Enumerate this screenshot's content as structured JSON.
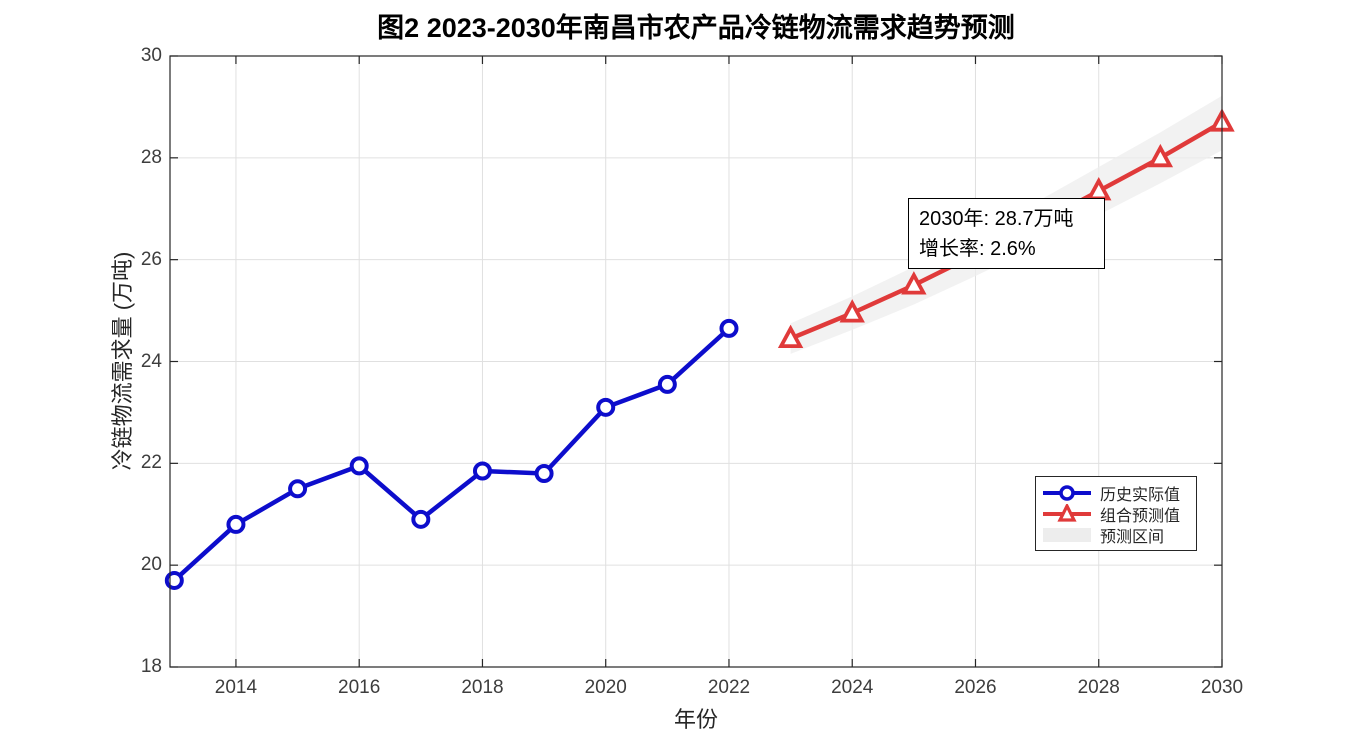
{
  "chart_data": {
    "type": "line",
    "title": "图2 2023-2030年南昌市农产品冷链物流需求趋势预测",
    "xlabel": "年份",
    "ylabel": "冷链物流需求量 (万吨)",
    "xlim": [
      2012.93,
      2030
    ],
    "ylim": [
      18,
      30
    ],
    "x_ticks": [
      2014,
      2016,
      2018,
      2020,
      2022,
      2024,
      2026,
      2028,
      2030
    ],
    "y_ticks": [
      18,
      20,
      22,
      24,
      26,
      28,
      30
    ],
    "grid": true,
    "series": [
      {
        "name": "历史实际值",
        "marker": "circle",
        "color": "#0d0dcc",
        "x": [
          2013,
          2014,
          2015,
          2016,
          2017,
          2018,
          2019,
          2020,
          2021,
          2022
        ],
        "values": [
          19.7,
          20.8,
          21.5,
          21.95,
          20.9,
          21.85,
          21.8,
          23.1,
          23.55,
          24.65
        ]
      },
      {
        "name": "组合预测值",
        "marker": "triangle",
        "color": "#e03a3a",
        "x": [
          2023,
          2024,
          2025,
          2026,
          2027,
          2028,
          2029,
          2030
        ],
        "values": [
          24.45,
          24.95,
          25.5,
          26.1,
          26.7,
          27.35,
          28.0,
          28.7
        ]
      }
    ],
    "band": {
      "name": "预测区间",
      "color": "#ededed",
      "x": [
        2023,
        2024,
        2025,
        2026,
        2027,
        2028,
        2029,
        2030
      ],
      "upper": [
        24.75,
        25.28,
        25.86,
        26.5,
        27.14,
        27.82,
        28.5,
        29.22
      ],
      "lower": [
        24.15,
        24.62,
        25.12,
        25.68,
        26.26,
        26.88,
        27.5,
        28.15
      ]
    },
    "legend": {
      "position": "lower right",
      "items": [
        {
          "label": "历史实际值",
          "swatch": "blue-line-circle"
        },
        {
          "label": "组合预测值",
          "swatch": "red-line-triangle"
        },
        {
          "label": "预测区间",
          "swatch": "gray-patch"
        }
      ]
    },
    "annotation": {
      "line1": "2030年: 28.7万吨",
      "line2": "增长率: 2.6%"
    },
    "colors": {
      "axis": "#262626",
      "grid": "#e0e0e0",
      "tick_text": "#3d3d3d"
    }
  }
}
